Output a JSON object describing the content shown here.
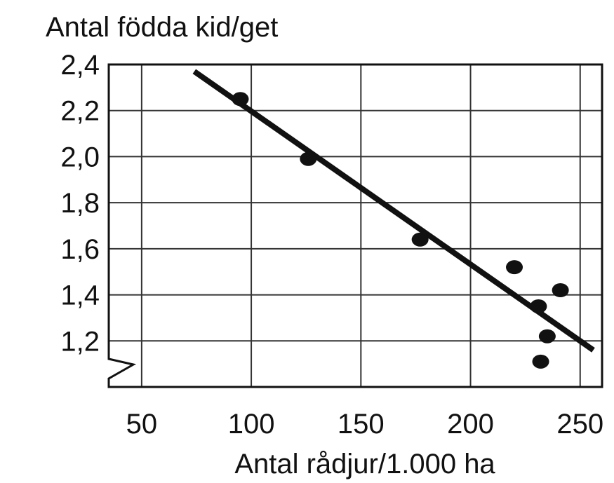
{
  "chart_data": {
    "type": "scatter",
    "title": "Antal födda kid/get",
    "x_label": "Antal rådjur/1.000 ha",
    "series": [
      {
        "name": null,
        "color": "#111111",
        "x": [
          95,
          126,
          177,
          220,
          241,
          231,
          235,
          232
        ],
        "values": [
          2.25,
          1.99,
          1.64,
          1.52,
          1.42,
          1.35,
          1.22,
          1.11
        ]
      }
    ],
    "trend": {
      "x": [
        74,
        256
      ],
      "values": [
        2.37,
        1.16
      ],
      "color": "#111111"
    },
    "xlim": [
      35,
      260
    ],
    "xticks": [
      50,
      100,
      150,
      200,
      250
    ],
    "ylim": [
      1.0,
      2.4
    ],
    "yticks": [
      {
        "value": 1.2,
        "label": "1,2"
      },
      {
        "value": 1.4,
        "label": "1,4"
      },
      {
        "value": 1.6,
        "label": "1,6"
      },
      {
        "value": 1.8,
        "label": "1,8"
      },
      {
        "value": 2.0,
        "label": "2,0"
      },
      {
        "value": 2.2,
        "label": "2,2"
      },
      {
        "value": 2.4,
        "label": "2,4"
      }
    ],
    "grid": true
  }
}
